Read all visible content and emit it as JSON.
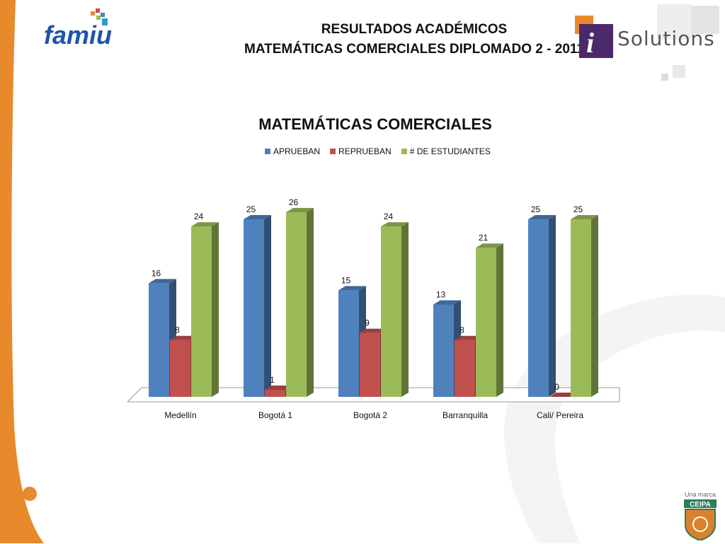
{
  "header": {
    "title_line1": "RESULTADOS ACADÉMICOS",
    "title_line2": "MATEMÁTICAS COMERCIALES  DIPLOMADO 2 - 2011"
  },
  "logos": {
    "famiu": "famiu",
    "solutions": "Solutions",
    "ceipa_tagline": "Una marca",
    "ceipa": "CEIPA"
  },
  "colors": {
    "accent_orange": "#e8892b",
    "aprueban": "#4f81bd",
    "reprueban": "#c0504d",
    "estudiantes": "#9bbb59"
  },
  "chart_data": {
    "type": "bar",
    "title": "MATEMÁTICAS COMERCIALES",
    "categories": [
      "Medellín",
      "Bogotá 1",
      "Bogotá 2",
      "Barranquilla",
      "Cali/ Pereira"
    ],
    "series": [
      {
        "name": "APRUEBAN",
        "values": [
          16,
          25,
          15,
          13,
          25
        ]
      },
      {
        "name": "REPRUEBAN",
        "values": [
          8,
          1,
          9,
          8,
          0
        ]
      },
      {
        "name": "# DE ESTUDIANTES",
        "values": [
          24,
          26,
          24,
          21,
          25
        ]
      }
    ],
    "ylim": [
      0,
      26
    ],
    "legend": "top",
    "grid": false,
    "style": "3d-clustered-column"
  }
}
